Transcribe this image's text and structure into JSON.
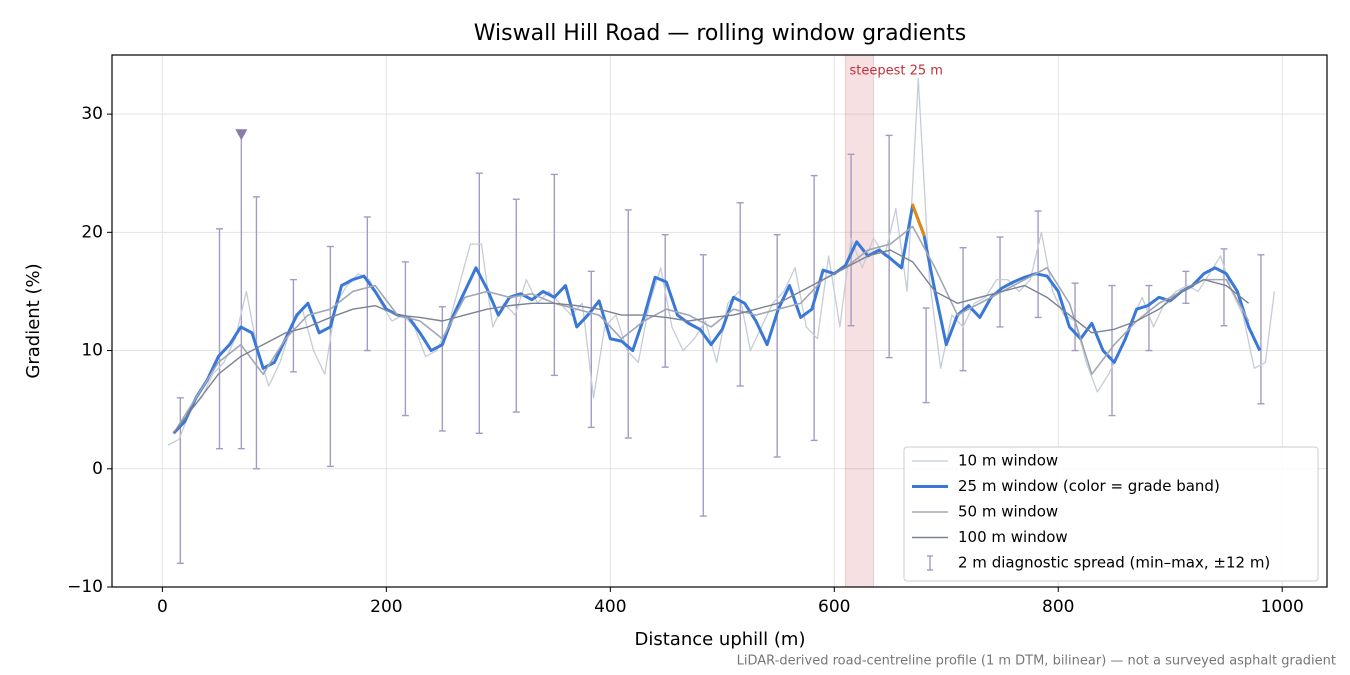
{
  "chart_data": {
    "type": "line",
    "title": "Wiswall Hill Road — rolling window gradients",
    "xlabel": "Distance uphill (m)",
    "ylabel": "Gradient (%)",
    "note": "LiDAR-derived road-centreline profile (1 m DTM, bilinear) — not a surveyed asphalt gradient",
    "xlim": [
      -45,
      1040
    ],
    "ylim": [
      -10,
      35
    ],
    "xticks": [
      0,
      200,
      400,
      600,
      800,
      1000
    ],
    "yticks": [
      {
        "value": -10,
        "label": "−10"
      },
      0,
      10,
      20,
      30
    ],
    "grid": true,
    "legend": "lower right",
    "highlight": {
      "label": "steepest 25 m",
      "span": [
        610,
        635
      ],
      "color": "#c0303a"
    },
    "peak_marker": {
      "x": 70.5,
      "y": 28.3,
      "color": "#8a7ba8"
    },
    "series": [
      {
        "name": "10 m window",
        "color": "#c5cdd6",
        "width": 1.3,
        "x": [
          5,
          15,
          25,
          35,
          45,
          55,
          65,
          75,
          85,
          95,
          105,
          115,
          125,
          135,
          145,
          155,
          165,
          175,
          185,
          195,
          205,
          215,
          225,
          235,
          245,
          255,
          265,
          275,
          285,
          295,
          305,
          315,
          325,
          335,
          345,
          355,
          365,
          375,
          385,
          395,
          405,
          415,
          425,
          435,
          445,
          455,
          465,
          475,
          485,
          495,
          505,
          515,
          525,
          535,
          545,
          555,
          565,
          575,
          585,
          595,
          605,
          615,
          625,
          635,
          645,
          655,
          665,
          675,
          685,
          695,
          705,
          715,
          725,
          735,
          745,
          755,
          765,
          775,
          785,
          795,
          805,
          815,
          825,
          835,
          845,
          855,
          865,
          875,
          885,
          895,
          905,
          915,
          925,
          935,
          945,
          955,
          965,
          975,
          985,
          993
        ],
        "values": [
          2,
          2.5,
          5,
          6,
          8,
          9,
          11,
          15,
          10,
          7,
          9,
          12,
          13.5,
          10,
          8,
          14,
          15.5,
          16.5,
          16,
          14,
          12.5,
          13,
          12,
          9.5,
          10,
          12,
          15.5,
          19,
          19,
          12,
          14,
          13,
          16,
          14,
          15,
          14,
          13,
          14,
          6,
          12,
          13,
          10,
          9,
          14,
          17,
          12,
          10,
          11,
          12.5,
          9,
          14,
          15,
          10,
          12,
          14,
          15,
          17,
          12,
          11,
          18,
          12,
          19.5,
          17,
          19.5,
          18,
          22,
          15,
          33,
          16,
          8.5,
          13,
          12,
          14,
          14.5,
          16,
          16,
          15,
          16,
          20,
          15,
          13,
          12.5,
          9,
          6.5,
          8,
          10,
          12.5,
          14.5,
          12,
          14,
          15,
          15.5,
          15,
          16.5,
          18,
          15,
          13,
          8.5,
          9,
          15
        ]
      },
      {
        "name": "25 m window (color = grade band)",
        "color": "#3a78d8",
        "width": 3,
        "band": {
          "threshold": 20,
          "color": "#e08a10"
        },
        "x": [
          10,
          20,
          30,
          40,
          50,
          60,
          70,
          80,
          90,
          100,
          110,
          120,
          130,
          140,
          150,
          160,
          170,
          180,
          190,
          200,
          210,
          220,
          230,
          240,
          250,
          260,
          270,
          280,
          290,
          300,
          310,
          320,
          330,
          340,
          350,
          360,
          370,
          380,
          390,
          400,
          410,
          420,
          430,
          440,
          450,
          460,
          470,
          480,
          490,
          500,
          510,
          520,
          530,
          540,
          550,
          560,
          570,
          580,
          590,
          600,
          610,
          620,
          630,
          640,
          650,
          660,
          670,
          680,
          690,
          700,
          710,
          720,
          730,
          740,
          750,
          760,
          770,
          780,
          790,
          800,
          810,
          820,
          830,
          840,
          850,
          860,
          870,
          880,
          890,
          900,
          910,
          920,
          930,
          940,
          950,
          960,
          970,
          980
        ],
        "values": [
          3,
          4,
          6,
          7.5,
          9.5,
          10.5,
          12,
          11.5,
          8.5,
          9,
          11,
          13,
          14,
          11.5,
          12,
          15.5,
          16,
          16.3,
          15,
          13.5,
          13,
          12.8,
          11.5,
          10,
          10.5,
          13,
          15,
          17,
          15.2,
          13,
          14.5,
          14.8,
          14.3,
          15,
          14.5,
          15.5,
          12,
          13,
          14.2,
          11,
          10.8,
          10,
          12.8,
          16.2,
          15.8,
          13,
          12.3,
          11.8,
          10.5,
          11.8,
          14.5,
          14,
          12.5,
          10.5,
          13.5,
          15.5,
          12.8,
          13.5,
          16.8,
          16.5,
          17.2,
          19.2,
          18,
          18.5,
          17.8,
          17,
          22.3,
          19.8,
          15,
          10.5,
          13,
          13.8,
          12.8,
          14.5,
          15.3,
          15.8,
          16.2,
          16.5,
          16.3,
          15,
          12,
          11,
          12.3,
          10,
          9,
          11,
          13.5,
          13.8,
          14.5,
          14.2,
          15,
          15.5,
          16.5,
          17,
          16.5,
          15,
          12,
          10
        ]
      },
      {
        "name": "50 m window",
        "color": "#a0a7b4",
        "width": 1.6,
        "x": [
          10,
          30,
          50,
          70,
          90,
          110,
          130,
          150,
          170,
          190,
          210,
          230,
          250,
          270,
          290,
          310,
          330,
          350,
          370,
          390,
          410,
          430,
          450,
          470,
          490,
          510,
          530,
          550,
          570,
          590,
          610,
          630,
          650,
          670,
          690,
          710,
          730,
          750,
          770,
          790,
          810,
          830,
          850,
          870,
          890,
          910,
          930,
          950,
          970
        ],
        "values": [
          3,
          6,
          9,
          10.5,
          8,
          11,
          13,
          13.5,
          15,
          15.5,
          13,
          12.5,
          11,
          14.5,
          15,
          14.5,
          14.8,
          14,
          13.5,
          13,
          11,
          12.5,
          13.5,
          13,
          12,
          13.5,
          13,
          13.5,
          14,
          16,
          17,
          18.5,
          19,
          20.5,
          17,
          13,
          14,
          15,
          16,
          17,
          14,
          8,
          10.5,
          12.5,
          14,
          15,
          16,
          16,
          12.5
        ]
      },
      {
        "name": "100 m window",
        "color": "#7a8294",
        "width": 1.4,
        "x": [
          10,
          30,
          50,
          70,
          90,
          110,
          130,
          150,
          170,
          190,
          210,
          230,
          250,
          270,
          290,
          310,
          330,
          350,
          370,
          390,
          410,
          430,
          450,
          470,
          490,
          510,
          530,
          550,
          570,
          590,
          610,
          630,
          650,
          670,
          690,
          710,
          730,
          750,
          770,
          790,
          810,
          830,
          850,
          870,
          890,
          910,
          930,
          950,
          970
        ],
        "values": [
          3,
          5.5,
          8,
          9.5,
          10.5,
          11.5,
          12,
          12.8,
          13.5,
          13.8,
          13,
          12.8,
          12.5,
          13,
          13.5,
          13.8,
          14,
          14,
          13.8,
          13.5,
          13,
          13,
          12.8,
          12.5,
          12.8,
          13,
          13.5,
          14,
          15,
          16,
          17,
          18,
          18.5,
          17.5,
          15,
          14,
          14.5,
          15,
          15.5,
          14.5,
          13,
          11.5,
          11.8,
          12.5,
          13.5,
          15,
          16,
          15.5,
          14
        ]
      }
    ],
    "errorbars": {
      "name": "2 m diagnostic spread (min–max, ±12 m)",
      "color": "#a29cc4",
      "x": [
        16,
        51,
        70.5,
        84,
        117,
        150,
        183,
        217,
        250,
        283,
        316,
        350,
        383,
        416,
        449,
        483,
        516,
        549,
        582,
        615,
        649,
        682,
        715,
        748,
        782,
        815,
        848,
        881,
        914,
        948,
        981
      ],
      "low": [
        -8,
        1.7,
        1.7,
        0,
        8.2,
        0.2,
        10,
        4.5,
        3.2,
        3,
        4.8,
        7.9,
        3.5,
        2.6,
        8.6,
        -4,
        7,
        1,
        2.4,
        12.1,
        9.4,
        5.6,
        8.3,
        12,
        12.8,
        10,
        4.5,
        10,
        14,
        12.1,
        5.5
      ],
      "high": [
        6,
        20.3,
        28.3,
        23,
        16,
        18.8,
        21.3,
        17.5,
        13.7,
        25,
        22.8,
        24.9,
        16.7,
        21.9,
        19.8,
        18.1,
        22.5,
        19.8,
        24.8,
        26.6,
        28.2,
        13.6,
        18.7,
        19.6,
        21.8,
        15.7,
        15.5,
        15.5,
        16.7,
        18.6,
        18.1
      ]
    }
  }
}
